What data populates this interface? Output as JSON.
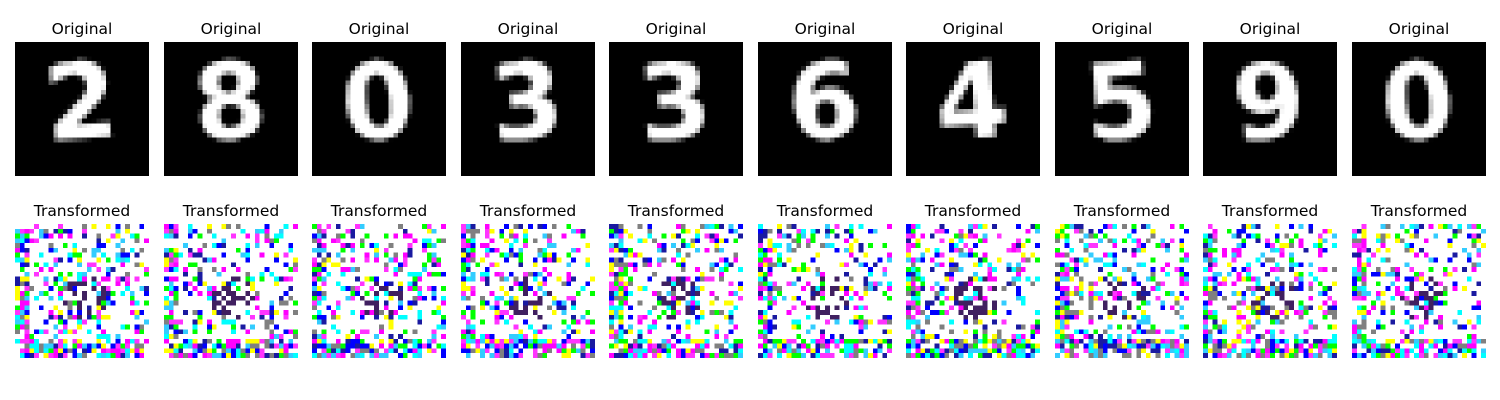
{
  "figure": {
    "panels": [
      {
        "digit": "2",
        "original_title": "Original",
        "transformed_title": "Transformed"
      },
      {
        "digit": "8",
        "original_title": "Original",
        "transformed_title": "Transformed"
      },
      {
        "digit": "0",
        "original_title": "Original",
        "transformed_title": "Transformed"
      },
      {
        "digit": "3",
        "original_title": "Original",
        "transformed_title": "Transformed"
      },
      {
        "digit": "3",
        "original_title": "Original",
        "transformed_title": "Transformed"
      },
      {
        "digit": "6",
        "original_title": "Original",
        "transformed_title": "Transformed"
      },
      {
        "digit": "4",
        "original_title": "Original",
        "transformed_title": "Transformed"
      },
      {
        "digit": "5",
        "original_title": "Original",
        "transformed_title": "Transformed"
      },
      {
        "digit": "9",
        "original_title": "Original",
        "transformed_title": "Transformed"
      },
      {
        "digit": "0",
        "original_title": "Original",
        "transformed_title": "Transformed"
      }
    ],
    "colors": {
      "original_background": "#000000",
      "original_stroke": "#ffffff",
      "noise_palette": [
        "#ff00ff",
        "#00ffff",
        "#ffff00",
        "#00ff00",
        "#0000ff",
        "#ff33ff",
        "#33ccff",
        "#ffffff",
        "#1a1aa0",
        "#808080"
      ]
    }
  }
}
